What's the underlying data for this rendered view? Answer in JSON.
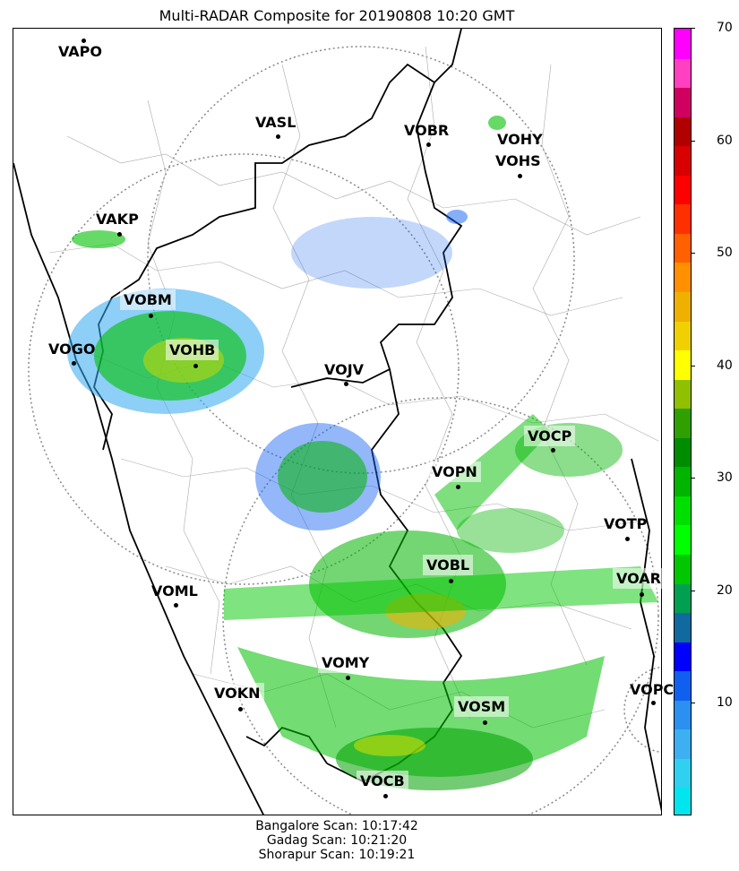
{
  "title": "Multi-RADAR Composite for 20190808 10:20 GMT",
  "stations": [
    {
      "id": "VAPO",
      "boxed": false
    },
    {
      "id": "VASL",
      "boxed": false
    },
    {
      "id": "VOBR",
      "boxed": false
    },
    {
      "id": "VOHY",
      "boxed": false
    },
    {
      "id": "VOHS",
      "boxed": false
    },
    {
      "id": "VAKP",
      "boxed": false
    },
    {
      "id": "VOBM",
      "boxed": true
    },
    {
      "id": "VOGO",
      "boxed": false
    },
    {
      "id": "VOHB",
      "boxed": true
    },
    {
      "id": "VOJV",
      "boxed": false
    },
    {
      "id": "VOCP",
      "boxed": true
    },
    {
      "id": "VOPN",
      "boxed": true
    },
    {
      "id": "VOTP",
      "boxed": false
    },
    {
      "id": "VOBL",
      "boxed": true
    },
    {
      "id": "VOAR",
      "boxed": true
    },
    {
      "id": "VOML",
      "boxed": false
    },
    {
      "id": "VOMY",
      "boxed": true
    },
    {
      "id": "VOKN",
      "boxed": true
    },
    {
      "id": "VOSM",
      "boxed": true
    },
    {
      "id": "VOPC",
      "boxed": false
    },
    {
      "id": "VOCB",
      "boxed": true
    }
  ],
  "colorbar": {
    "min": 0,
    "max": 70,
    "ticks": [
      "10",
      "20",
      "30",
      "40",
      "50",
      "60",
      "70"
    ],
    "colors": [
      "#00e5ee",
      "#2fd0f0",
      "#3cb0f0",
      "#2b90f0",
      "#1060f0",
      "#0000ff",
      "#106aa0",
      "#00a050",
      "#00c800",
      "#00ff00",
      "#00e000",
      "#00b400",
      "#008c00",
      "#30a000",
      "#90c000",
      "#ffff00",
      "#f0d000",
      "#f0b000",
      "#ff9000",
      "#ff6000",
      "#ff3000",
      "#ff0000",
      "#d80000",
      "#b00000",
      "#d00060",
      "#ff40c0",
      "#ff00ff"
    ]
  },
  "footer": {
    "line1": "Bangalore Scan: 10:17:42",
    "line2": "Gadag Scan: 10:21:20",
    "line3": "Shorapur Scan: 10:19:21"
  }
}
